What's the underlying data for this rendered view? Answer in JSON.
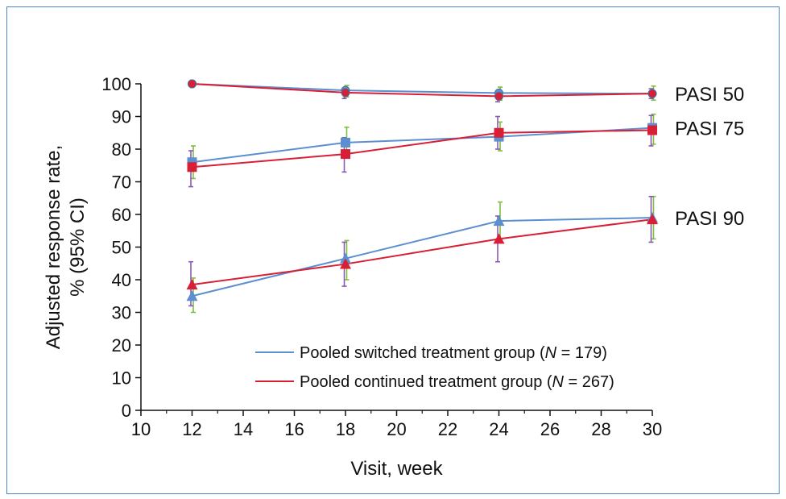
{
  "chart_data": {
    "type": "line",
    "xlabel": "Visit, week",
    "ylabel_lines": [
      "Adjusted response rate,",
      "% (95% CI)"
    ],
    "xlim": [
      10,
      30
    ],
    "ylim": [
      0,
      100
    ],
    "x_ticks": [
      "10",
      "12",
      "14",
      "16",
      "18",
      "20",
      "22",
      "24",
      "26",
      "28",
      "30"
    ],
    "y_ticks": [
      "0",
      "10",
      "20",
      "30",
      "40",
      "50",
      "60",
      "70",
      "80",
      "90",
      "100"
    ],
    "x": [
      12,
      18,
      24,
      30
    ],
    "groups": [
      {
        "label": "PASI 50",
        "marker": "circle",
        "series": [
          {
            "group": "switched",
            "values": [
              100,
              98,
              97.2,
              97
            ],
            "ci_low": [
              100,
              96,
              95,
              95
            ],
            "ci_high": [
              100,
              99.5,
              99,
              99.3
            ]
          },
          {
            "group": "continued",
            "values": [
              100,
              97.3,
              96.2,
              97
            ],
            "ci_low": [
              100,
              95.5,
              94.5,
              95.5
            ],
            "ci_high": [
              100,
              98.7,
              97.8,
              98.5
            ]
          }
        ]
      },
      {
        "label": "PASI 75",
        "marker": "square",
        "series": [
          {
            "group": "switched",
            "values": [
              76,
              82,
              83.8,
              86.5
            ],
            "ci_low": [
              71,
              77.3,
              79.5,
              81.5
            ],
            "ci_high": [
              81,
              86.7,
              88.3,
              90.7
            ]
          },
          {
            "group": "continued",
            "values": [
              74.5,
              78.5,
              85,
              85.8
            ],
            "ci_low": [
              68.5,
              73,
              80,
              81
            ],
            "ci_high": [
              79.5,
              83.5,
              90,
              90.3
            ]
          }
        ]
      },
      {
        "label": "PASI 90",
        "marker": "triangle",
        "series": [
          {
            "group": "switched",
            "values": [
              35,
              46.5,
              58,
              59
            ],
            "ci_low": [
              30,
              40,
              52,
              52.5
            ],
            "ci_high": [
              40.5,
              52,
              63.8,
              65.5
            ]
          },
          {
            "group": "continued",
            "values": [
              38.5,
              44.8,
              52.5,
              58.5
            ],
            "ci_low": [
              32,
              38,
              45.5,
              51.5
            ],
            "ci_high": [
              45.5,
              51.5,
              59.5,
              65.5
            ]
          }
        ]
      }
    ],
    "legend": [
      {
        "group": "switched",
        "text": "Pooled switched treatment group (",
        "var": "N",
        "rest": " = 179)"
      },
      {
        "group": "continued",
        "text": "Pooled continued treatment group (",
        "var": "N",
        "rest": " = 267)"
      }
    ],
    "colors": {
      "switched": "#5b8fd0",
      "continued": "#d81f35",
      "switched_marker": "#5b8fd0",
      "switched_err": "#7fbf3f",
      "continued_err": "#8a5ab0",
      "axis": "#111111"
    },
    "legend_position": "lower-right",
    "grid": false
  }
}
